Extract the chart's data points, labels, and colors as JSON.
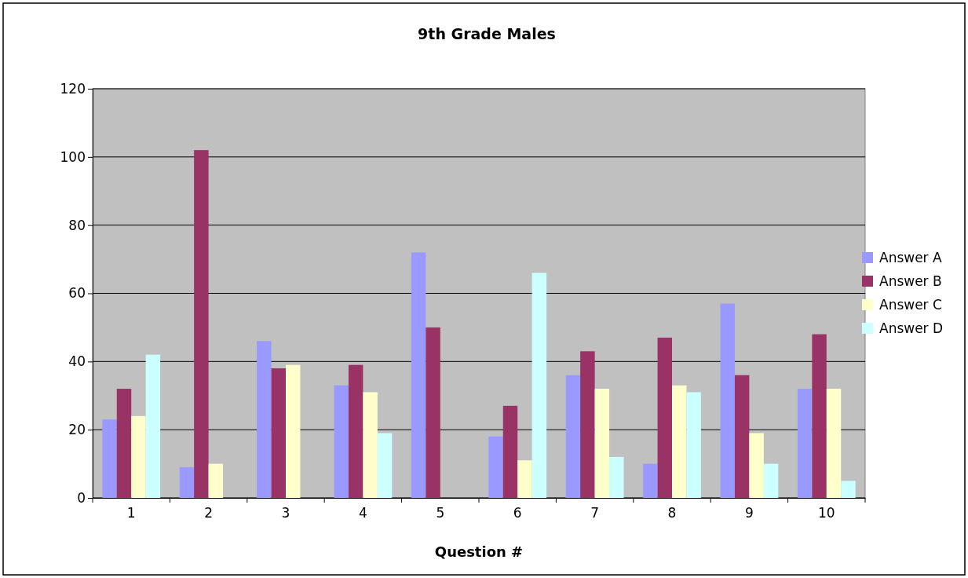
{
  "chart_data": {
    "type": "bar",
    "title": "9th Grade Males",
    "xlabel": "Question #",
    "categories": [
      "1",
      "2",
      "3",
      "4",
      "5",
      "6",
      "7",
      "8",
      "9",
      "10"
    ],
    "series": [
      {
        "name": "Answer A",
        "color": "#9999ff",
        "values": [
          23,
          9,
          46,
          33,
          72,
          18,
          36,
          10,
          57,
          32
        ]
      },
      {
        "name": "Answer B",
        "color": "#993366",
        "values": [
          32,
          102,
          38,
          39,
          50,
          27,
          43,
          47,
          36,
          48
        ]
      },
      {
        "name": "Answer C",
        "color": "#ffffcc",
        "values": [
          24,
          10,
          39,
          31,
          null,
          11,
          32,
          33,
          19,
          32
        ]
      },
      {
        "name": "Answer D",
        "color": "#ccffff",
        "values": [
          42,
          null,
          null,
          19,
          null,
          66,
          12,
          31,
          10,
          5
        ]
      }
    ],
    "ylim": [
      0,
      120
    ],
    "yticks": [
      0,
      20,
      40,
      60,
      80,
      100,
      120
    ],
    "grid": "y",
    "legend": "right"
  }
}
